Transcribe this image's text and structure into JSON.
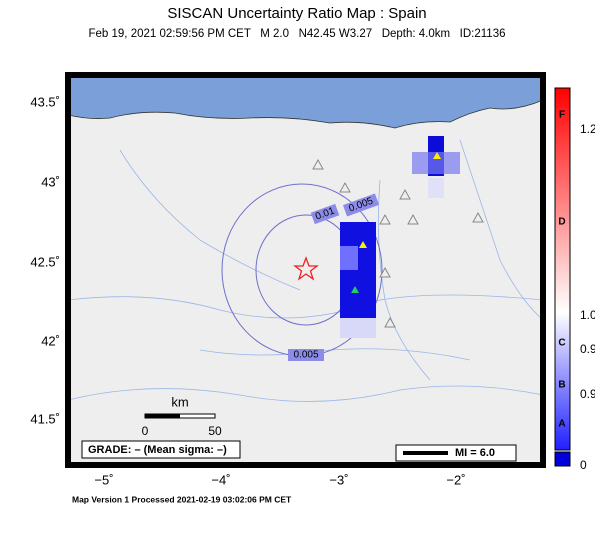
{
  "header": {
    "title": "SISCAN Uncertainty Ratio Map : Spain",
    "subtitle": "Feb 19, 2021 02:59:56 PM CET   M 2.0   N42.45 W3.27   Depth: 4.0km   ID:21136"
  },
  "map": {
    "lat_labels": [
      "43.5˚",
      "43˚",
      "42.5˚",
      "42˚",
      "41.5˚"
    ],
    "lon_labels": [
      "−5˚",
      "−4˚",
      "−3˚",
      "−2˚"
    ],
    "contour_labels": [
      "0.01",
      "0.005",
      "0.005"
    ],
    "scale_bar": {
      "unit": "km",
      "ticks": [
        "0",
        "50"
      ]
    },
    "grade": "GRADE: – (Mean sigma: –)",
    "mi": "MI = 6.0"
  },
  "colorbar": {
    "letters": [
      "F",
      "D",
      "C",
      "B",
      "A"
    ],
    "labels": [
      "1.2",
      "1.0",
      "0.9",
      "0.9",
      "0"
    ]
  },
  "footer": "Map Version 1 Processed 2021-02-19 03:02:06 PM CET"
}
